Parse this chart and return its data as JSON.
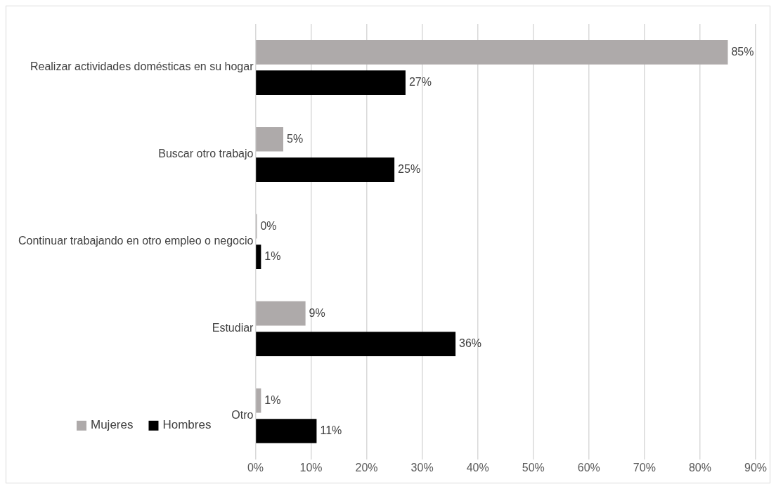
{
  "chart_data": {
    "type": "bar",
    "orientation": "horizontal",
    "categories": [
      "Realizar actividades domésticas en su hogar",
      "Buscar otro trabajo",
      "Continuar trabajando en otro empleo o negocio",
      "Estudiar",
      "Otro"
    ],
    "series": [
      {
        "name": "Mujeres",
        "color": "#aeaaaa",
        "values": [
          85,
          5,
          0,
          9,
          1
        ],
        "value_labels": [
          "85%",
          "5%",
          "0%",
          "9%",
          "1%"
        ]
      },
      {
        "name": "Hombres",
        "color": "#000000",
        "values": [
          27,
          25,
          1,
          36,
          11
        ],
        "value_labels": [
          "27%",
          "25%",
          "1%",
          "36%",
          "11%"
        ]
      }
    ],
    "xlim": [
      0,
      90
    ],
    "xticks": [
      {
        "value": 0,
        "label": "0%"
      },
      {
        "value": 10,
        "label": "10%"
      },
      {
        "value": 20,
        "label": "20%"
      },
      {
        "value": 30,
        "label": "30%"
      },
      {
        "value": 40,
        "label": "40%"
      },
      {
        "value": 50,
        "label": "50%"
      },
      {
        "value": 60,
        "label": "60%"
      },
      {
        "value": 70,
        "label": "70%"
      },
      {
        "value": 80,
        "label": "80%"
      },
      {
        "value": 90,
        "label": "90%"
      }
    ],
    "grid": "x",
    "legend": "bottom left"
  }
}
